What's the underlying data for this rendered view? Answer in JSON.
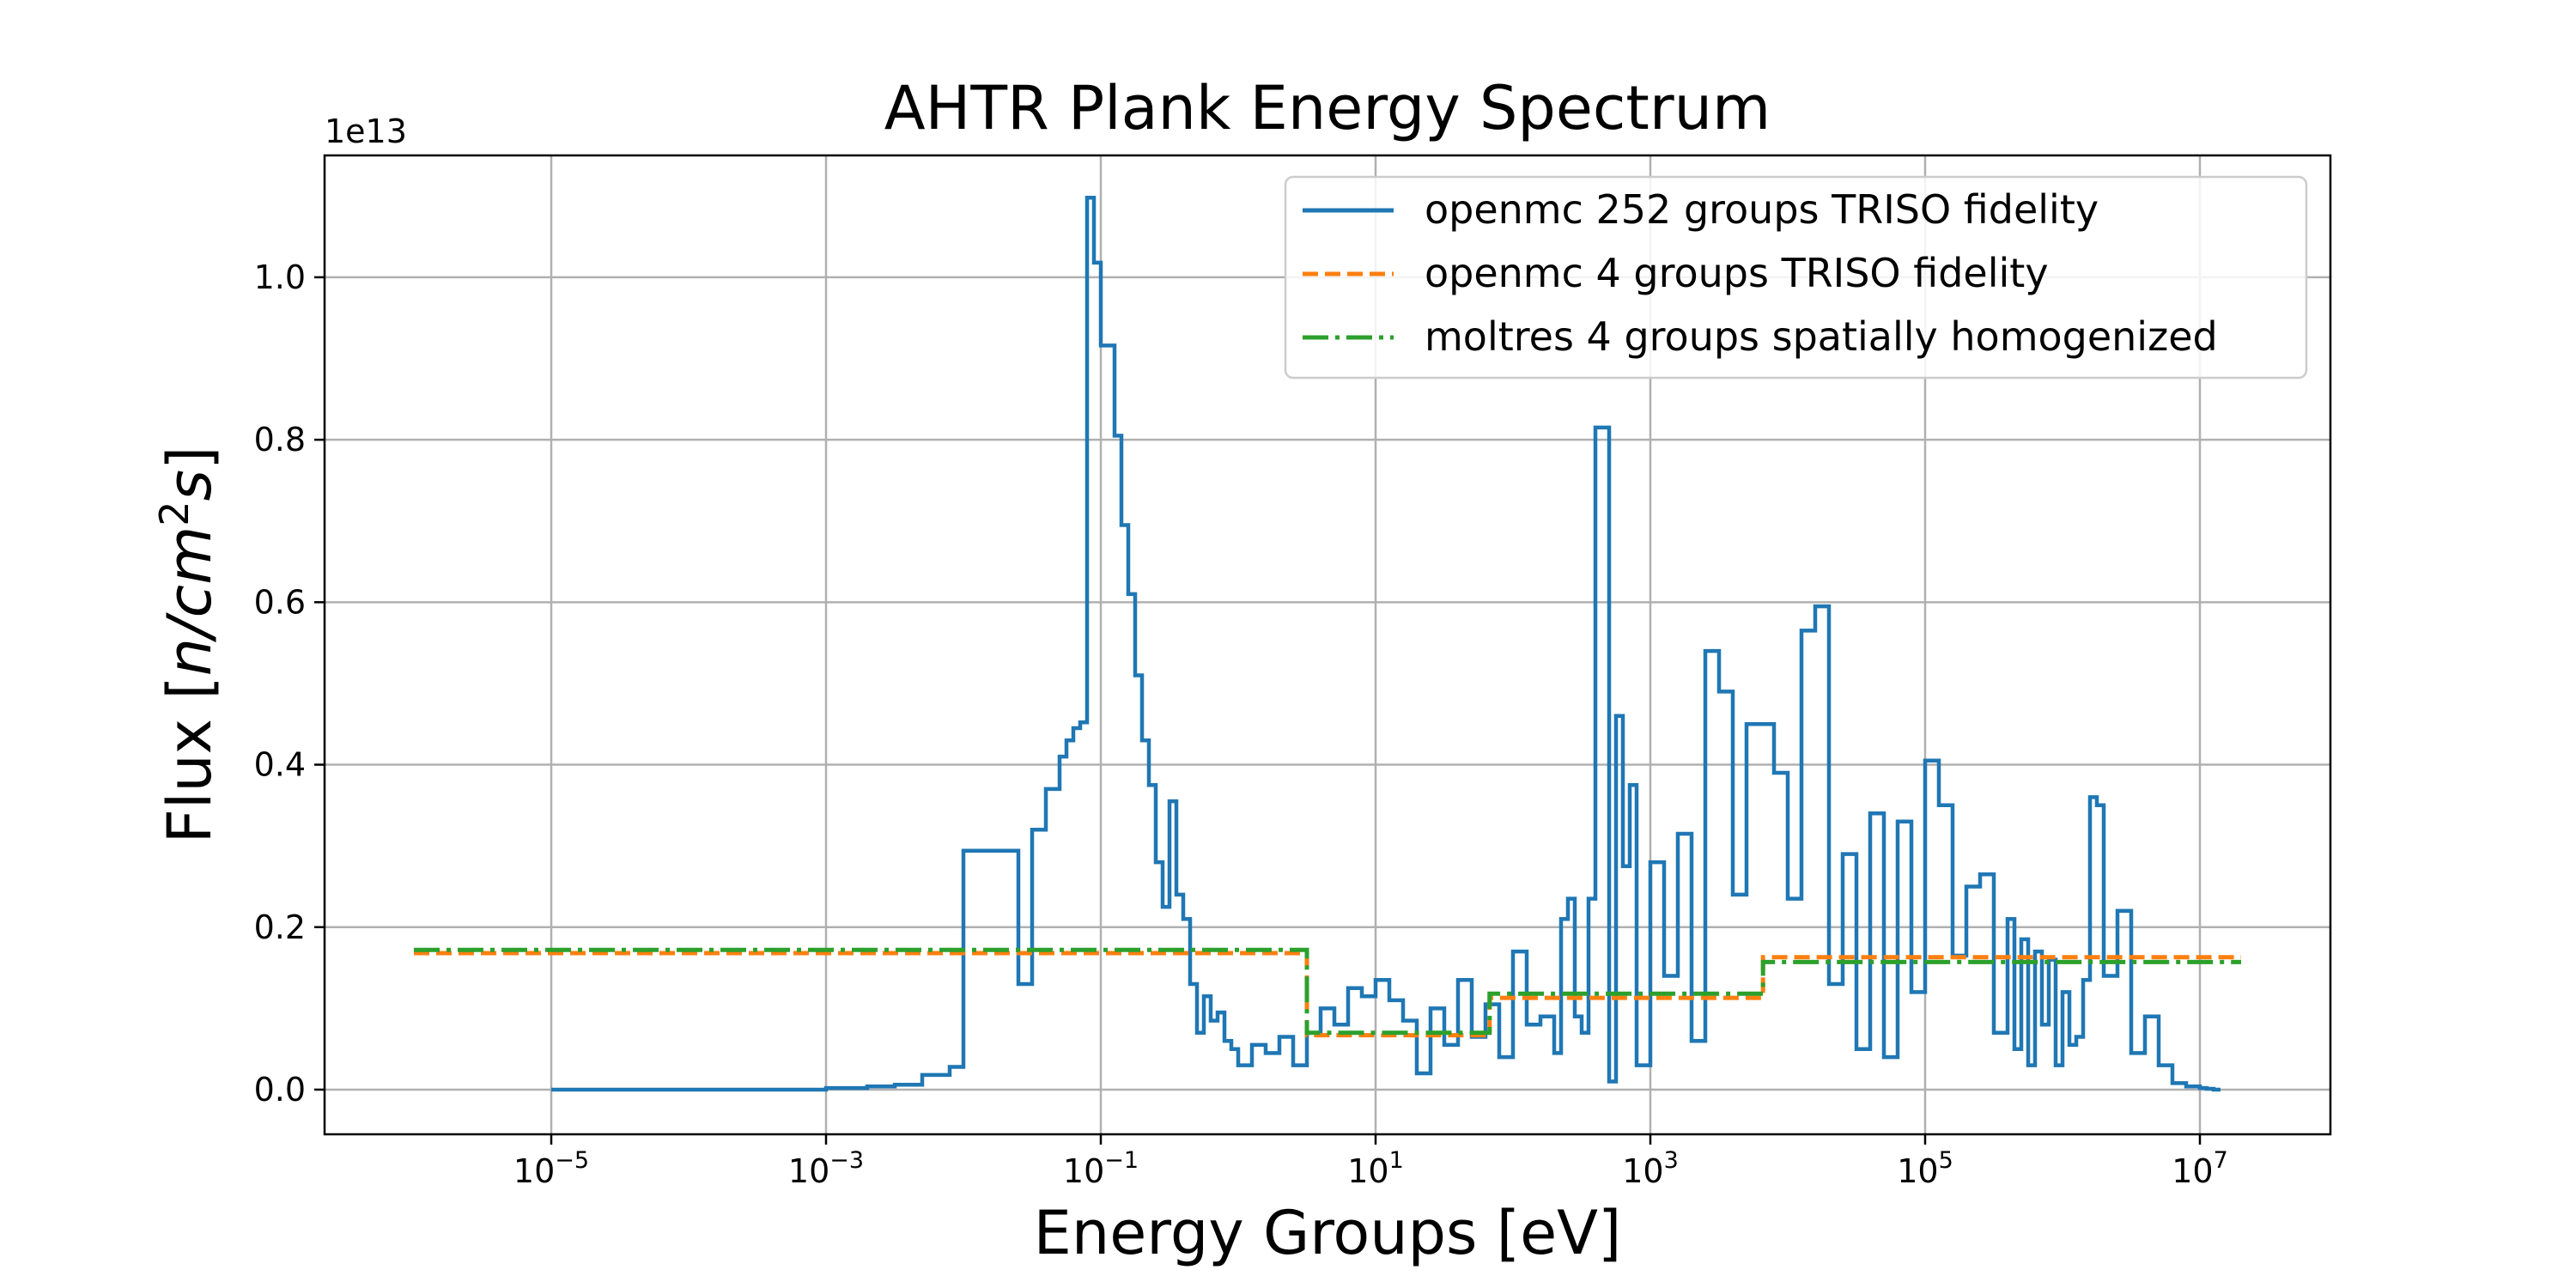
{
  "chart_data": {
    "type": "line",
    "title": "AHTR Plank Energy Spectrum",
    "xlabel": "Energy Groups [eV]",
    "ylabel_text": "Flux [",
    "ylabel_math": "n/cm",
    "ylabel_sup": "2",
    "ylabel_math_tail": "s",
    "ylabel_close": "]",
    "y_offset_label": "1e13",
    "x_scale": "log",
    "x_tick_base": "10",
    "x_ticks": [
      -5,
      -3,
      -1,
      1,
      3,
      5,
      7
    ],
    "x_tick_exponents": [
      "−5",
      "−3",
      "−1",
      "1",
      "3",
      "5",
      "7"
    ],
    "xlim": [
      -6.65,
      7.95
    ],
    "y_ticks": [
      0.0,
      0.2,
      0.4,
      0.6,
      0.8,
      1.0
    ],
    "y_tick_labels": [
      "0.0",
      "0.2",
      "0.4",
      "0.6",
      "0.8",
      "1.0"
    ],
    "ylim": [
      -0.055,
      1.15
    ],
    "grid": true,
    "legend_position": "top-right",
    "series": [
      {
        "name": "openmc 252 groups TRISO fidelity",
        "color": "#1f77b4",
        "style": "solid",
        "step_x_log10": [
          -5.0,
          -3.0,
          -2.7,
          -2.5,
          -2.3,
          -2.1,
          -2.0,
          -1.6,
          -1.5,
          -1.4,
          -1.3,
          -1.25,
          -1.2,
          -1.15,
          -1.1,
          -1.05,
          -1.0,
          -0.9,
          -0.85,
          -0.8,
          -0.75,
          -0.7,
          -0.65,
          -0.6,
          -0.55,
          -0.5,
          -0.45,
          -0.4,
          -0.35,
          -0.3,
          -0.25,
          -0.2,
          -0.15,
          -0.1,
          -0.05,
          0.0,
          0.1,
          0.2,
          0.3,
          0.4,
          0.5,
          0.6,
          0.7,
          0.8,
          0.9,
          1.0,
          1.1,
          1.2,
          1.3,
          1.4,
          1.5,
          1.6,
          1.7,
          1.8,
          1.9,
          2.0,
          2.1,
          2.2,
          2.3,
          2.35,
          2.4,
          2.45,
          2.5,
          2.55,
          2.6,
          2.65,
          2.7,
          2.75,
          2.8,
          2.85,
          2.9,
          3.0,
          3.1,
          3.2,
          3.3,
          3.4,
          3.5,
          3.6,
          3.7,
          3.9,
          4.0,
          4.1,
          4.2,
          4.3,
          4.4,
          4.5,
          4.6,
          4.7,
          4.8,
          4.9,
          5.0,
          5.1,
          5.2,
          5.3,
          5.4,
          5.5,
          5.6,
          5.65,
          5.7,
          5.75,
          5.8,
          5.85,
          5.9,
          5.95,
          6.0,
          6.05,
          6.1,
          6.15,
          6.2,
          6.25,
          6.3,
          6.4,
          6.5,
          6.6,
          6.7,
          6.8,
          6.9,
          7.0,
          7.05,
          7.1,
          7.15,
          7.3
        ],
        "step_y": [
          0.0,
          0.002,
          0.004,
          0.006,
          0.018,
          0.028,
          0.294,
          0.13,
          0.32,
          0.37,
          0.41,
          0.43,
          0.445,
          0.452,
          1.098,
          1.018,
          0.916,
          0.805,
          0.695,
          0.61,
          0.51,
          0.43,
          0.375,
          0.28,
          0.225,
          0.355,
          0.24,
          0.21,
          0.13,
          0.07,
          0.115,
          0.085,
          0.095,
          0.06,
          0.05,
          0.03,
          0.055,
          0.045,
          0.065,
          0.03,
          0.07,
          0.1,
          0.08,
          0.125,
          0.115,
          0.135,
          0.11,
          0.085,
          0.02,
          0.1,
          0.055,
          0.135,
          0.065,
          0.105,
          0.04,
          0.17,
          0.08,
          0.09,
          0.045,
          0.21,
          0.235,
          0.09,
          0.07,
          0.235,
          0.815,
          0.815,
          0.01,
          0.46,
          0.275,
          0.375,
          0.03,
          0.28,
          0.14,
          0.315,
          0.06,
          0.54,
          0.49,
          0.24,
          0.45,
          0.39,
          0.235,
          0.565,
          0.595,
          0.13,
          0.29,
          0.05,
          0.34,
          0.04,
          0.33,
          0.12,
          0.405,
          0.35,
          0.165,
          0.25,
          0.265,
          0.07,
          0.21,
          0.05,
          0.185,
          0.03,
          0.17,
          0.08,
          0.16,
          0.03,
          0.12,
          0.055,
          0.065,
          0.135,
          0.36,
          0.35,
          0.14,
          0.22,
          0.045,
          0.09,
          0.03,
          0.008,
          0.004,
          0.002,
          0.001,
          0.0
        ]
      },
      {
        "name": "openmc 4 groups TRISO fidelity",
        "color": "#ff7f0e",
        "style": "dashed",
        "step_x_log10": [
          -6.0,
          0.5,
          1.83,
          3.82,
          7.3
        ],
        "step_y": [
          0.168,
          0.067,
          0.113,
          0.163
        ]
      },
      {
        "name": "moltres 4 groups spatially homogenized",
        "color": "#2ca02c",
        "style": "dashdot",
        "step_x_log10": [
          -6.0,
          0.5,
          1.83,
          3.82,
          7.3
        ],
        "step_y": [
          0.172,
          0.07,
          0.118,
          0.157
        ]
      }
    ]
  }
}
